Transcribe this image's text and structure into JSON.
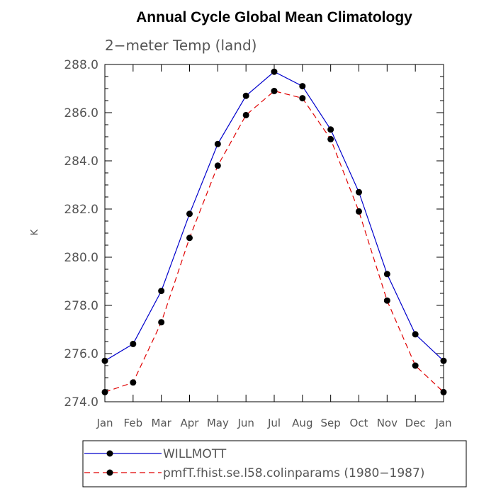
{
  "chart_data": {
    "type": "line",
    "title": "Annual Cycle Global Mean Climatology",
    "subtitle": "2−meter Temp (land)",
    "ylabel": "K",
    "xlabel": "",
    "categories": [
      "Jan",
      "Feb",
      "Mar",
      "Apr",
      "May",
      "Jun",
      "Jul",
      "Aug",
      "Sep",
      "Oct",
      "Nov",
      "Dec",
      "Jan"
    ],
    "ylim": [
      274.0,
      288.0
    ],
    "yticks": [
      "274.0",
      "276.0",
      "278.0",
      "280.0",
      "282.0",
      "284.0",
      "286.0",
      "288.0"
    ],
    "grid": false,
    "legend_position": "bottom",
    "series": [
      {
        "name": "WILLMOTT",
        "color": "#0000cc",
        "dash": "solid",
        "values": [
          275.7,
          276.4,
          278.6,
          281.8,
          284.7,
          286.7,
          287.7,
          287.1,
          285.3,
          282.7,
          279.3,
          276.8,
          275.7
        ]
      },
      {
        "name": "pmfT.fhist.se.l58.colinparams (1980−1987)",
        "color": "#e00000",
        "dash": "dashed",
        "values": [
          274.4,
          274.8,
          277.3,
          280.8,
          283.8,
          285.9,
          286.9,
          286.6,
          284.9,
          281.9,
          278.2,
          275.5,
          274.4
        ]
      }
    ]
  }
}
